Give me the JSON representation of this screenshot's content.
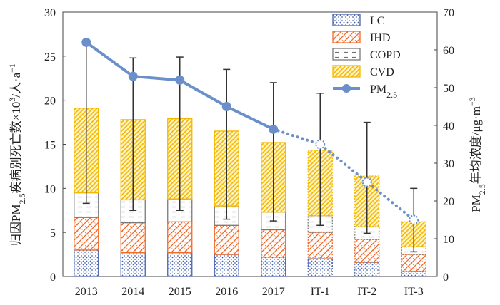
{
  "chart_data": {
    "type": "bar",
    "categories": [
      "2013",
      "2014",
      "2015",
      "2016",
      "2017",
      "IT-1",
      "IT-2",
      "IT-3"
    ],
    "series": [
      {
        "name": "LC",
        "values": [
          3.0,
          2.7,
          2.7,
          2.5,
          2.2,
          2.1,
          1.6,
          0.6
        ],
        "color": "#4a63b0",
        "pattern": "dots"
      },
      {
        "name": "IHD",
        "values": [
          3.7,
          3.4,
          3.5,
          3.3,
          3.1,
          2.9,
          2.6,
          1.9
        ],
        "color": "#f06a2a",
        "pattern": "crosshatch"
      },
      {
        "name": "COPD",
        "values": [
          2.8,
          2.6,
          2.6,
          2.2,
          2.0,
          1.9,
          1.5,
          0.9
        ],
        "color": "#7a7a7a",
        "pattern": "dashes"
      },
      {
        "name": "CVD",
        "values": [
          9.6,
          9.1,
          9.1,
          8.5,
          7.9,
          7.4,
          5.7,
          2.8
        ],
        "color": "#f5b800",
        "pattern": "diagonal"
      }
    ],
    "error_bars": {
      "upper": [
        26.7,
        24.8,
        24.9,
        23.5,
        22.0,
        20.8,
        17.5,
        10.0
      ],
      "lower": [
        8.3,
        7.5,
        7.5,
        6.5,
        6.3,
        5.8,
        4.9,
        2.8
      ]
    },
    "line_series": {
      "name": "PM2.5",
      "name_main": "PM",
      "name_sub": "2.5",
      "axis": "right",
      "values": [
        62.0,
        53.0,
        52.0,
        45.0,
        39.0,
        35.0,
        25.0,
        15.0
      ],
      "solid_until": "2017",
      "color": "#6b8fc9"
    },
    "left_axis": {
      "ylim": [
        0,
        30
      ],
      "ticks": [
        "0",
        "5",
        "10",
        "15",
        "20",
        "25",
        "30"
      ],
      "label": "归因PM2.5疾病别死亡数×10³/人·a⁻¹"
    },
    "right_axis": {
      "ylim": [
        0,
        70
      ],
      "ticks": [
        "0",
        "10",
        "20",
        "30",
        "40",
        "50",
        "60",
        "70"
      ],
      "label": "PM2.5年均浓度/μg·m⁻³"
    },
    "legend": {
      "placement": "top-right"
    },
    "grid": false
  }
}
